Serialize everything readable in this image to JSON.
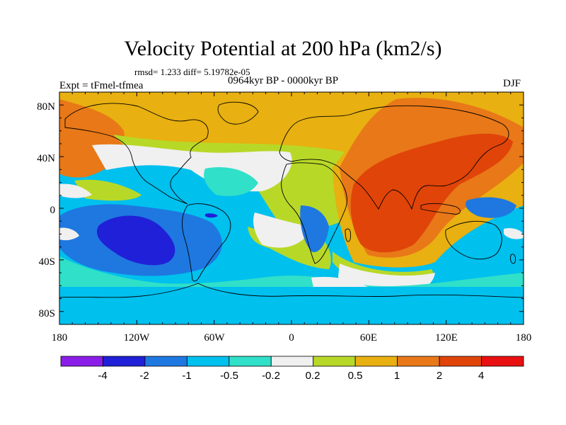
{
  "title": "Velocity Potential at 200 hPa (km2/s)",
  "stats": "rmsd= 1.233 diff= 5.19782e-05",
  "experiment": "Expt = tFmel-tfmea",
  "period": "0964kyr BP - 0000kyr BP",
  "season": "DJF",
  "axes": {
    "lat_labels": [
      "80N",
      "40N",
      "0",
      "40S",
      "80S"
    ],
    "lon_labels": [
      "180",
      "120W",
      "60W",
      "0",
      "60E",
      "120E",
      "180"
    ]
  },
  "colorbar": {
    "colors": [
      "#8a1ee8",
      "#2020d8",
      "#1e78e0",
      "#00c0ee",
      "#30e0c8",
      "#f0f0f0",
      "#b8d828",
      "#e8b010",
      "#e87818",
      "#e04408",
      "#e81010"
    ],
    "labels": [
      "-4",
      "-2",
      "-1",
      "-0.5",
      "-0.2",
      "0.2",
      "0.5",
      "1",
      "2",
      "4"
    ]
  },
  "field_colors": {
    "blue_deep": "#2020d8",
    "blue": "#1e78e0",
    "cyan": "#00c0ee",
    "teal": "#30e0c8",
    "white": "#f0f0f0",
    "lime": "#b8d828",
    "gold": "#e8b010",
    "orange": "#e87818",
    "red": "#e04408"
  }
}
